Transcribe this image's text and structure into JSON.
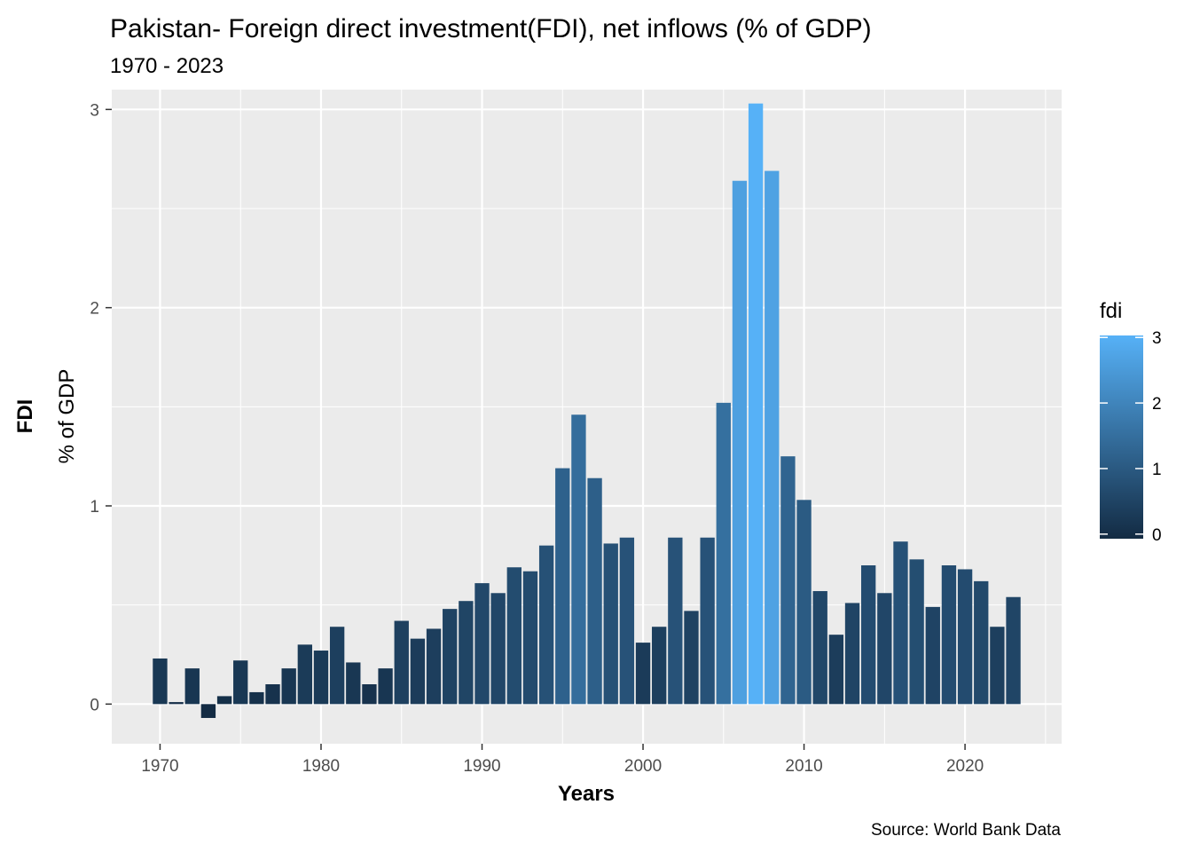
{
  "chart_data": {
    "type": "bar",
    "title": "Pakistan- Foreign direct investment(FDI), net inflows (% of GDP)",
    "subtitle": "1970 - 2023",
    "xlabel": "Years",
    "ylabel_bold": "FDI",
    "ylabel": "% of GDP",
    "caption": "Source: World Bank Data",
    "xlim": [
      1967,
      2026
    ],
    "ylim": [
      -0.2,
      3.1
    ],
    "x_ticks": [
      1970,
      1980,
      1990,
      2000,
      2010,
      2020
    ],
    "y_ticks": [
      0,
      1,
      2,
      3
    ],
    "grid": true,
    "legend": {
      "title": "fdi",
      "placement": "right",
      "ticks": [
        0,
        1,
        2,
        3
      ],
      "low_color": "#132B43",
      "high_color": "#56B1F7",
      "range": [
        -0.07,
        3.03
      ]
    },
    "x": [
      1970,
      1971,
      1972,
      1973,
      1974,
      1975,
      1976,
      1977,
      1978,
      1979,
      1980,
      1981,
      1982,
      1983,
      1984,
      1985,
      1986,
      1987,
      1988,
      1989,
      1990,
      1991,
      1992,
      1993,
      1994,
      1995,
      1996,
      1997,
      1998,
      1999,
      2000,
      2001,
      2002,
      2003,
      2004,
      2005,
      2006,
      2007,
      2008,
      2009,
      2010,
      2011,
      2012,
      2013,
      2014,
      2015,
      2016,
      2017,
      2018,
      2019,
      2020,
      2021,
      2022,
      2023
    ],
    "values": [
      0.23,
      0.01,
      0.18,
      -0.07,
      0.04,
      0.22,
      0.06,
      0.1,
      0.18,
      0.3,
      0.27,
      0.39,
      0.21,
      0.1,
      0.18,
      0.42,
      0.33,
      0.38,
      0.48,
      0.52,
      0.61,
      0.56,
      0.69,
      0.67,
      0.8,
      1.19,
      1.46,
      1.14,
      0.81,
      0.84,
      0.31,
      0.39,
      0.84,
      0.47,
      0.84,
      1.52,
      2.64,
      3.03,
      2.69,
      1.25,
      1.03,
      0.57,
      0.35,
      0.51,
      0.7,
      0.56,
      0.82,
      0.73,
      0.49,
      0.7,
      0.68,
      0.62,
      0.39,
      0.54
    ]
  }
}
